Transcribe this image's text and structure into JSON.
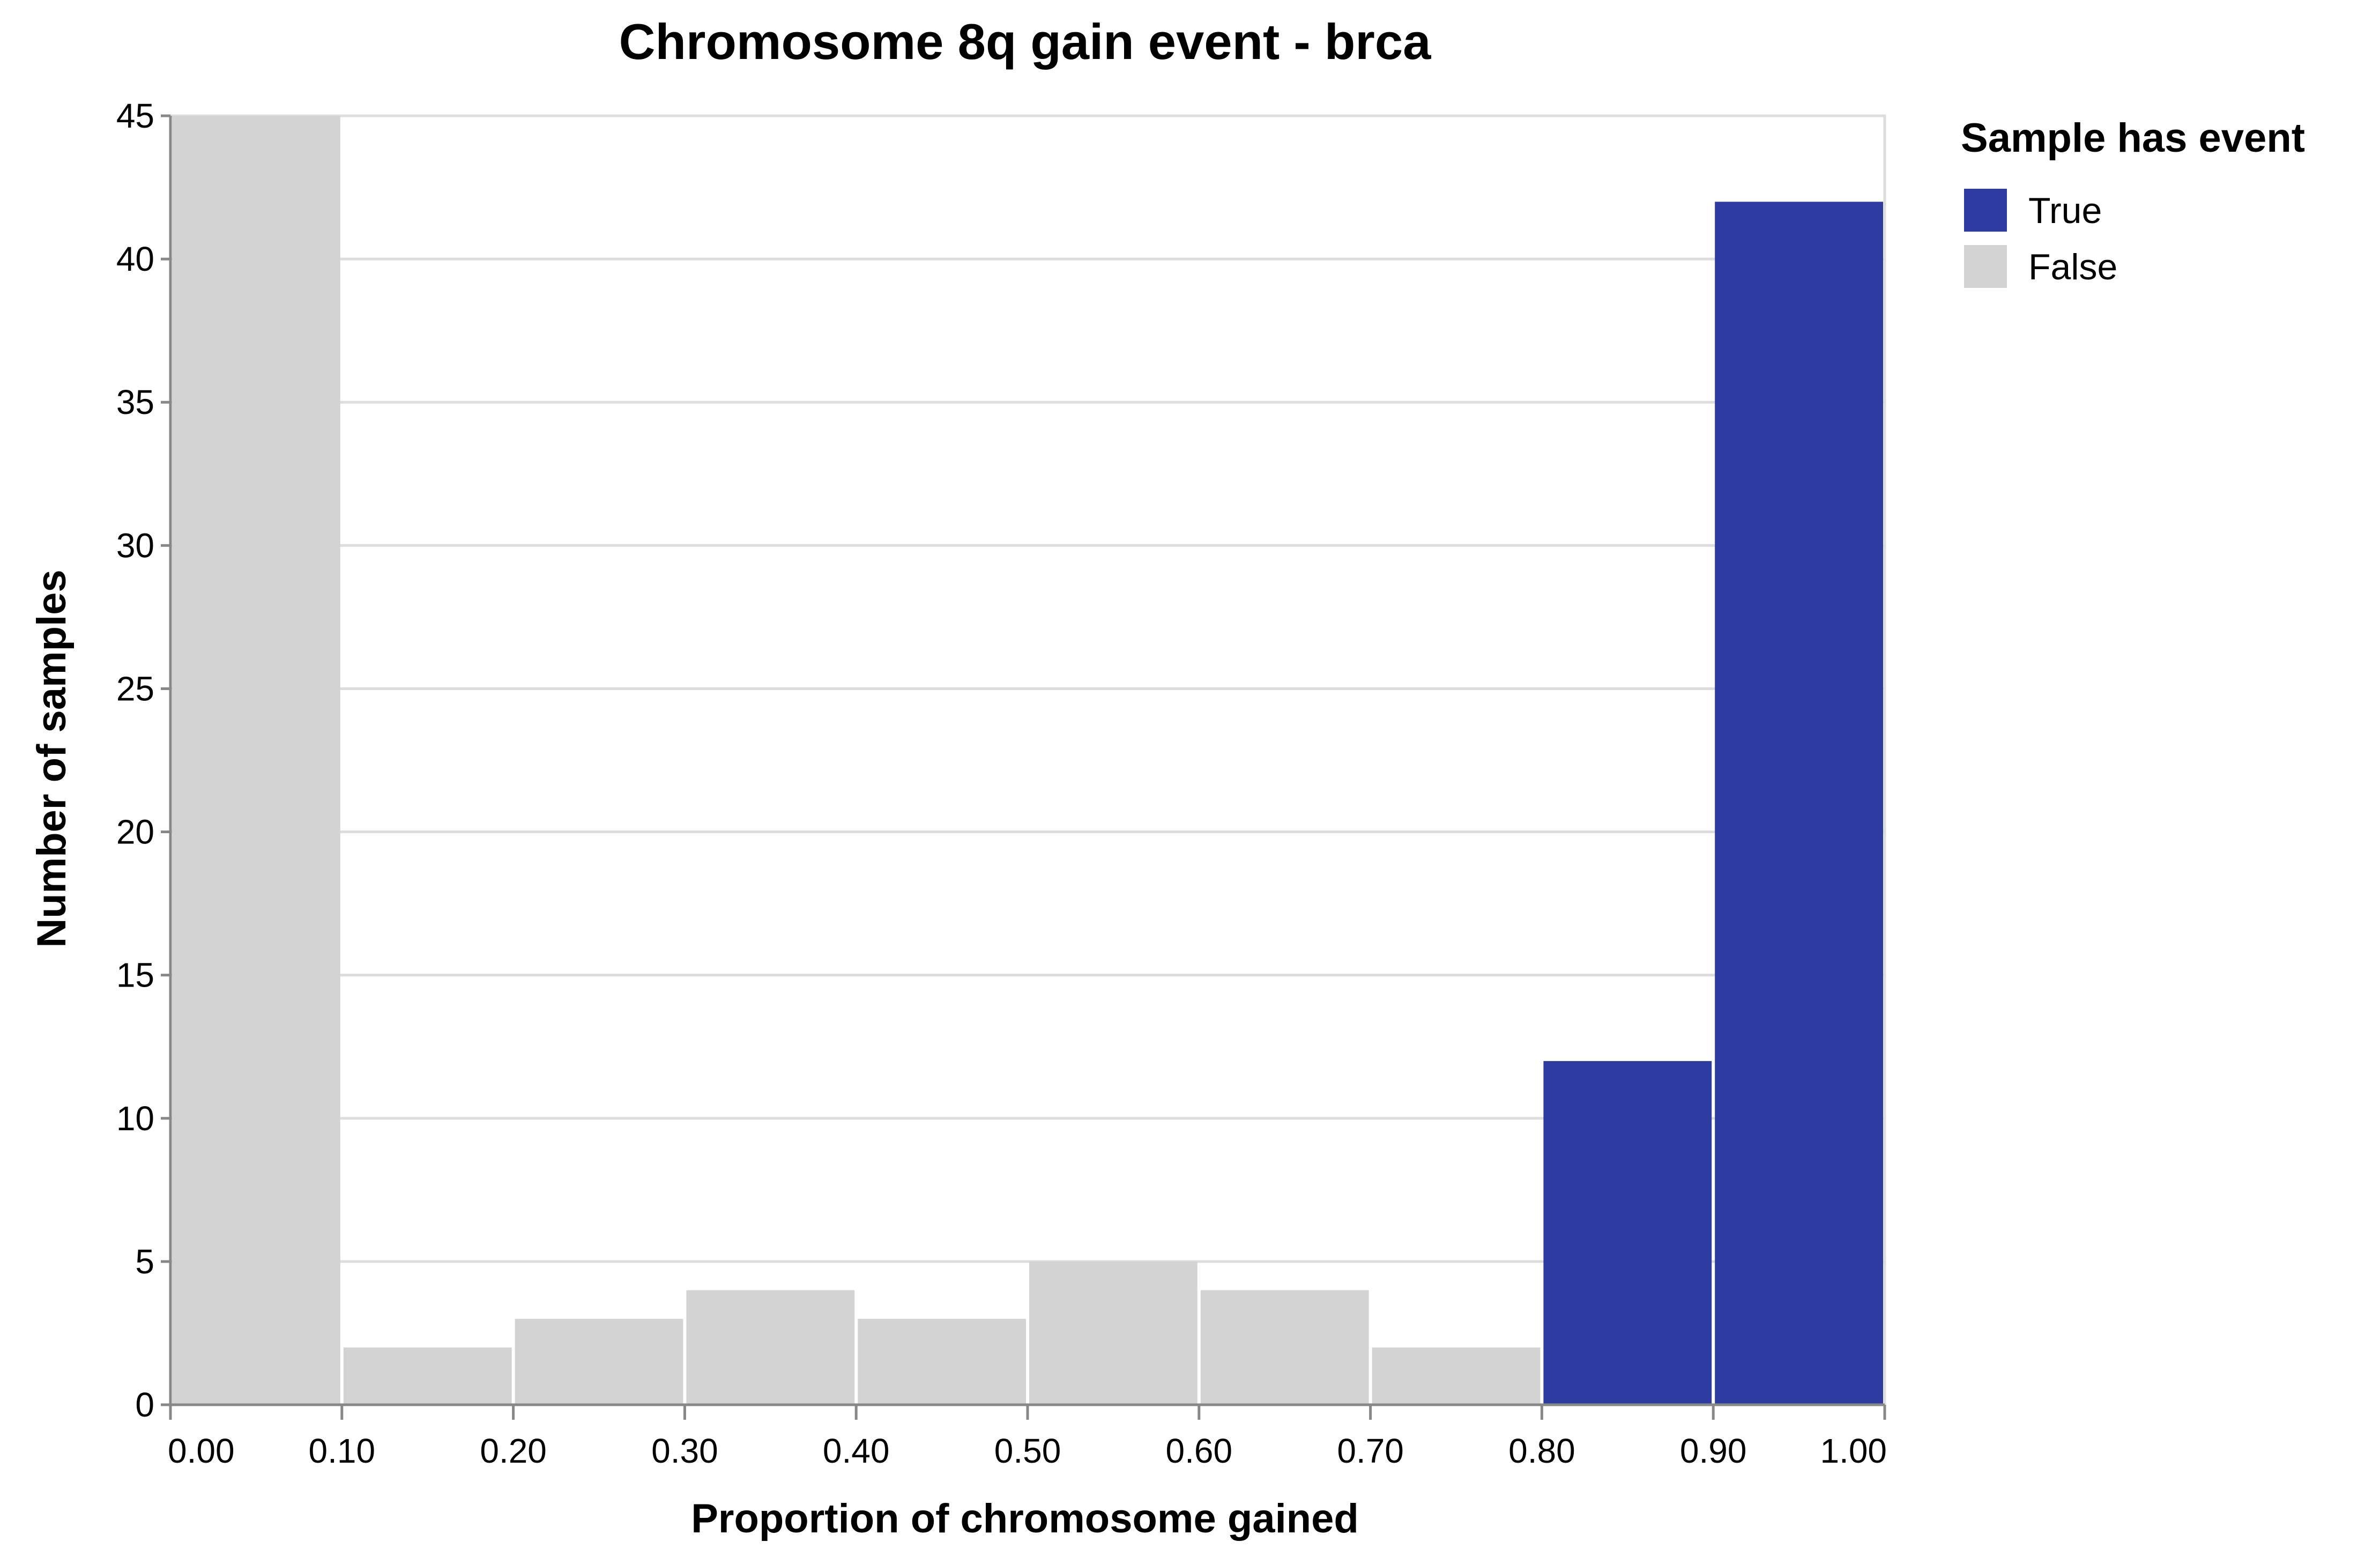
{
  "chart_data": {
    "type": "bar",
    "title": "Chromosome 8q gain event - brca",
    "xlabel": "Proportion of chromosome gained",
    "ylabel": "Number of samples",
    "xlim": [
      0,
      1
    ],
    "ylim": [
      0,
      45
    ],
    "x_ticks": [
      "0.00",
      "0.10",
      "0.20",
      "0.30",
      "0.40",
      "0.50",
      "0.60",
      "0.70",
      "0.80",
      "0.90",
      "1.00"
    ],
    "y_ticks": [
      "0",
      "5",
      "10",
      "15",
      "20",
      "25",
      "30",
      "35",
      "40",
      "45"
    ],
    "grid": true,
    "bins": [
      {
        "x0": 0.0,
        "x1": 0.1,
        "count": 45,
        "has_event": false
      },
      {
        "x0": 0.1,
        "x1": 0.2,
        "count": 2,
        "has_event": false
      },
      {
        "x0": 0.2,
        "x1": 0.3,
        "count": 3,
        "has_event": false
      },
      {
        "x0": 0.3,
        "x1": 0.4,
        "count": 4,
        "has_event": false
      },
      {
        "x0": 0.4,
        "x1": 0.5,
        "count": 3,
        "has_event": false
      },
      {
        "x0": 0.5,
        "x1": 0.6,
        "count": 5,
        "has_event": false
      },
      {
        "x0": 0.6,
        "x1": 0.7,
        "count": 4,
        "has_event": false
      },
      {
        "x0": 0.7,
        "x1": 0.8,
        "count": 2,
        "has_event": false
      },
      {
        "x0": 0.8,
        "x1": 0.9,
        "count": 12,
        "has_event": true
      },
      {
        "x0": 0.9,
        "x1": 1.0,
        "count": 42,
        "has_event": true
      }
    ],
    "legend": {
      "title": "Sample has event",
      "position": "top-right",
      "items": [
        {
          "label": "True",
          "color": "#2e3ba1"
        },
        {
          "label": "False",
          "color": "#d3d3d3"
        }
      ]
    },
    "colors": {
      "true": "#2e3ba1",
      "false": "#d3d3d3",
      "grid": "#dddddd",
      "axis": "#888888"
    }
  }
}
